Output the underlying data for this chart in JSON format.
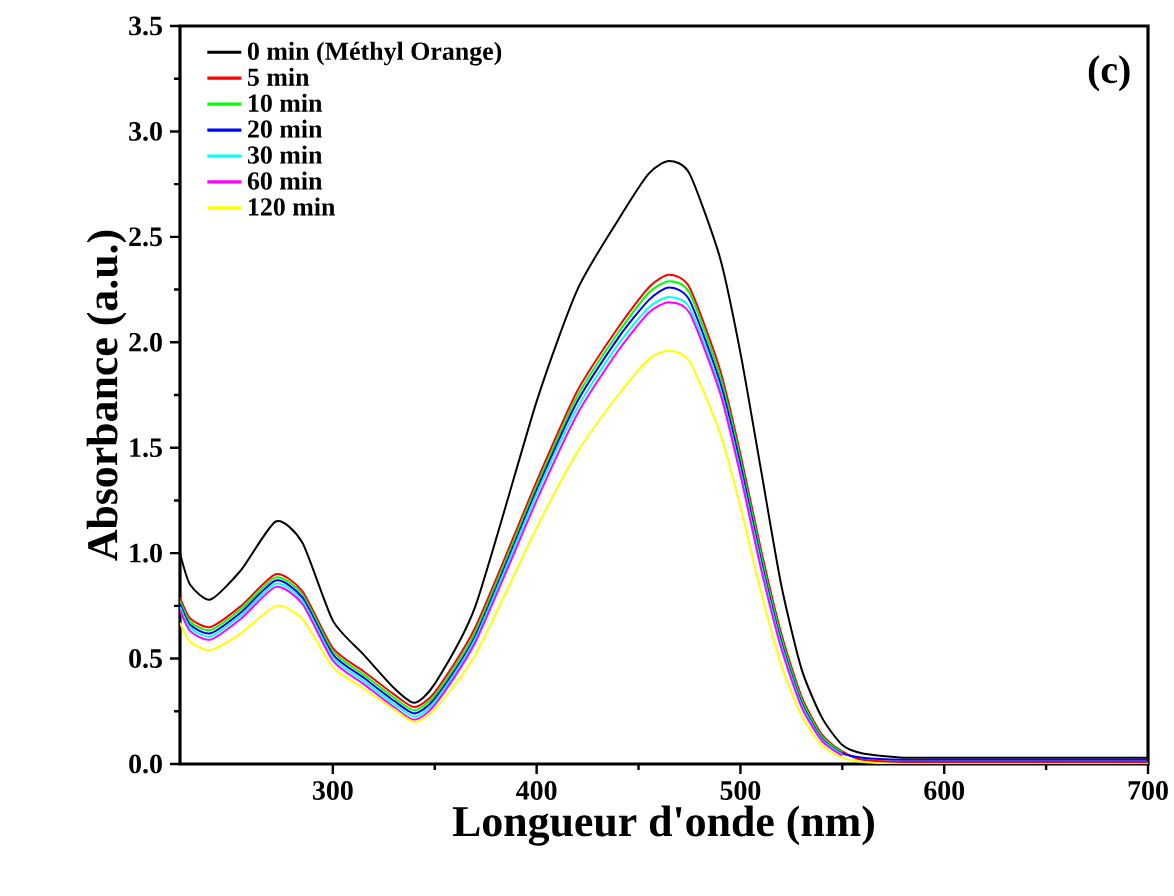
{
  "chart_data": {
    "type": "line",
    "xlabel": "Longueur d'onde (nm)",
    "ylabel": "Absorbance (a.u.)",
    "annotations": [
      "(c)"
    ],
    "x": [
      225,
      230,
      240,
      255,
      272,
      285,
      300,
      315,
      330,
      340,
      350,
      370,
      400,
      420,
      440,
      455,
      465,
      475,
      490,
      500,
      510,
      520,
      530,
      540,
      550,
      560,
      580,
      600,
      650,
      700
    ],
    "series": [
      {
        "name": "0 min (Méthyl Orange)",
        "color": "#000000",
        "values": [
          1.0,
          0.85,
          0.78,
          0.92,
          1.15,
          1.05,
          0.68,
          0.52,
          0.36,
          0.29,
          0.38,
          0.75,
          1.72,
          2.25,
          2.58,
          2.8,
          2.86,
          2.8,
          2.4,
          1.95,
          1.4,
          0.85,
          0.45,
          0.22,
          0.09,
          0.05,
          0.03,
          0.03,
          0.03,
          0.03
        ]
      },
      {
        "name": "5 min",
        "color": "#ff0000",
        "values": [
          0.79,
          0.69,
          0.65,
          0.75,
          0.9,
          0.82,
          0.55,
          0.44,
          0.33,
          0.27,
          0.34,
          0.65,
          1.34,
          1.77,
          2.07,
          2.26,
          2.32,
          2.26,
          1.87,
          1.47,
          1.02,
          0.62,
          0.32,
          0.14,
          0.06,
          0.02,
          0.01,
          0.01,
          0.01,
          0.01
        ]
      },
      {
        "name": "10 min",
        "color": "#00ff00",
        "values": [
          0.775,
          0.675,
          0.635,
          0.735,
          0.885,
          0.805,
          0.535,
          0.425,
          0.315,
          0.255,
          0.325,
          0.63,
          1.32,
          1.745,
          2.045,
          2.235,
          2.29,
          2.235,
          1.84,
          1.445,
          0.995,
          0.6,
          0.305,
          0.13,
          0.055,
          null,
          null,
          null,
          null,
          null
        ]
      },
      {
        "name": "20 min",
        "color": "#0000ff",
        "values": [
          0.76,
          0.66,
          0.62,
          0.72,
          0.87,
          0.79,
          0.52,
          0.41,
          0.3,
          0.24,
          0.31,
          0.61,
          1.3,
          1.72,
          2.02,
          2.2,
          2.26,
          2.2,
          1.81,
          1.42,
          0.97,
          0.58,
          0.29,
          0.12,
          0.05,
          0.03,
          0.02,
          0.02,
          0.02,
          0.02
        ]
      },
      {
        "name": "30 min",
        "color": "#00ffff",
        "values": [
          0.745,
          0.645,
          0.605,
          0.705,
          0.855,
          0.775,
          0.505,
          0.395,
          0.285,
          0.225,
          0.295,
          0.595,
          1.28,
          1.69,
          1.99,
          2.165,
          2.215,
          2.165,
          1.78,
          1.39,
          0.95,
          0.565,
          0.28,
          0.115,
          0.045,
          null,
          null,
          null,
          null,
          null
        ]
      },
      {
        "name": "60 min",
        "color": "#ff00ff",
        "values": [
          0.73,
          0.63,
          0.59,
          0.69,
          0.84,
          0.76,
          0.49,
          0.38,
          0.27,
          0.21,
          0.28,
          0.58,
          1.25,
          1.66,
          1.96,
          2.14,
          2.19,
          2.14,
          1.76,
          1.37,
          0.93,
          0.55,
          0.27,
          0.11,
          0.04,
          null,
          null,
          null,
          null,
          null
        ]
      },
      {
        "name": "120 min",
        "color": "#ffff00",
        "values": [
          0.67,
          0.58,
          0.54,
          0.62,
          0.75,
          0.69,
          0.46,
          0.36,
          0.26,
          0.2,
          0.26,
          0.52,
          1.12,
          1.48,
          1.75,
          1.92,
          1.96,
          1.91,
          1.57,
          1.22,
          0.82,
          0.47,
          0.23,
          0.09,
          0.03,
          0.01,
          0.0,
          0.0,
          0.0,
          0.0
        ]
      }
    ],
    "xlim": [
      225,
      700
    ],
    "ylim": [
      0,
      3.5
    ],
    "xticks": [
      300,
      400,
      500,
      600,
      700
    ],
    "yticks": [
      {
        "value": 0,
        "label": "0.0"
      },
      {
        "value": 0.5,
        "label": "0.5"
      },
      {
        "value": 1,
        "label": "1.0"
      },
      {
        "value": 1.5,
        "label": "1.5"
      },
      {
        "value": 2,
        "label": "2.0"
      },
      {
        "value": 2.5,
        "label": "2.5"
      },
      {
        "value": 3,
        "label": "3.0"
      },
      {
        "value": 3.5,
        "label": "3.5"
      }
    ],
    "legend": "top left",
    "grid": false,
    "marker": "none",
    "line_style": "solid"
  }
}
